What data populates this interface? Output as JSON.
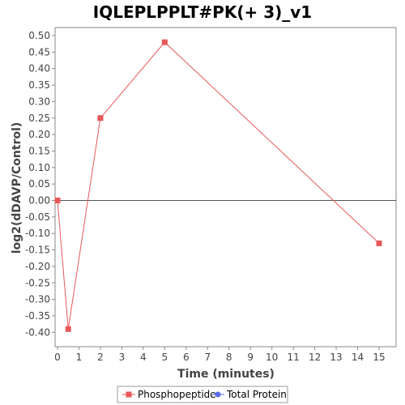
{
  "chart_data": {
    "type": "line",
    "title": "IQLEPLPPLT#PK(+ 3)_v1",
    "xlabel": "Time (minutes)",
    "ylabel": "log2(dDAVP/Control)",
    "xlim": [
      0,
      15.7
    ],
    "ylim": [
      -0.44,
      0.52
    ],
    "x_ticks": [
      0,
      1,
      2,
      3,
      4,
      5,
      6,
      7,
      8,
      9,
      10,
      11,
      12,
      13,
      14,
      15
    ],
    "x_tick_labels": [
      "0",
      "1",
      "2",
      "3",
      "4",
      "5",
      "6",
      "7",
      "8",
      "9",
      "10",
      "11",
      "12",
      "13",
      "14",
      "15"
    ],
    "y_ticks": [
      -0.4,
      -0.35,
      -0.3,
      -0.25,
      -0.2,
      -0.15,
      -0.1,
      -0.05,
      0.0,
      0.05,
      0.1,
      0.15,
      0.2,
      0.25,
      0.3,
      0.35,
      0.4,
      0.45,
      0.5
    ],
    "y_tick_labels": [
      "-0.40",
      "-0.35",
      "-0.30",
      "-0.25",
      "-0.20",
      "-0.15",
      "-0.10",
      "-0.05",
      "0.00",
      "0.05",
      "0.10",
      "0.15",
      "0.20",
      "0.25",
      "0.30",
      "0.35",
      "0.40",
      "0.45",
      "0.50"
    ],
    "grid": false,
    "reference_line_y": 0,
    "legend_position": "bottom",
    "series": [
      {
        "name": "Phosphopeptide",
        "color": "#e8585a",
        "marker": "square",
        "x": [
          0,
          0.5,
          2,
          5,
          15
        ],
        "y": [
          0.0,
          -0.39,
          0.25,
          0.48,
          -0.13
        ]
      },
      {
        "name": "Total Protein",
        "color": "#5c6cf0",
        "marker": "circle",
        "x": [],
        "y": []
      }
    ]
  }
}
